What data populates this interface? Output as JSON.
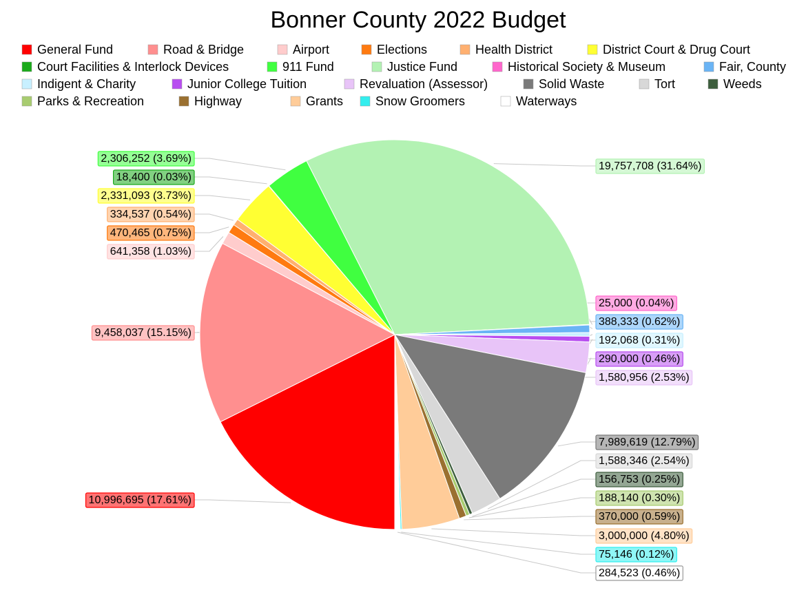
{
  "chart_data": {
    "type": "pie",
    "title": "Bonner County 2022 Budget",
    "categories": [
      "General Fund",
      "Road & Bridge",
      "Airport",
      "Elections",
      "Health District",
      "District Court & Drug Court",
      "Court Facilities & Interlock Devices",
      "911 Fund",
      "Justice Fund",
      "Historical Society & Museum",
      "Fair, County",
      "Indigent & Charity",
      "Junior College Tuition",
      "Revaluation (Assessor)",
      "Solid Waste",
      "Tort",
      "Weeds",
      "Parks & Recreation",
      "Highway",
      "Grants",
      "Snow Groomers",
      "Waterways"
    ],
    "values": [
      10996695,
      9458037,
      641358,
      470465,
      334537,
      2331093,
      18400,
      2306252,
      19757708,
      25000,
      388333,
      192068,
      290000,
      1580956,
      7989619,
      1588346,
      156753,
      188140,
      370000,
      3000000,
      75146,
      284523
    ],
    "value_labels": [
      "10,996,695 (17.61%)",
      "9,458,037 (15.15%)",
      "641,358 (1.03%)",
      "470,465 (0.75%)",
      "334,537 (0.54%)",
      "2,331,093 (3.73%)",
      "18,400 (0.03%)",
      "2,306,252 (3.69%)",
      "19,757,708 (31.64%)",
      "25,000 (0.04%)",
      "388,333 (0.62%)",
      "192,068 (0.31%)",
      "290,000 (0.46%)",
      "1,580,956 (2.53%)",
      "7,989,619 (12.79%)",
      "1,588,346 (2.54%)",
      "156,753 (0.25%)",
      "188,140 (0.30%)",
      "370,000 (0.59%)",
      "3,000,000 (4.80%)",
      "75,146 (0.12%)",
      "284,523 (0.46%)"
    ],
    "colors": [
      "#ff0000",
      "#ff8f8f",
      "#ffcccc",
      "#ff7a10",
      "#ffb070",
      "#ffff33",
      "#1aaa1a",
      "#40ff40",
      "#b3f2b3",
      "#ff66cc",
      "#6ab4f5",
      "#c8f0ff",
      "#b84ef0",
      "#e8c4f8",
      "#7a7a7a",
      "#d8d8d8",
      "#3d5e3d",
      "#a8cc70",
      "#9a7030",
      "#ffcc99",
      "#33eeee",
      "#ffffff"
    ]
  }
}
